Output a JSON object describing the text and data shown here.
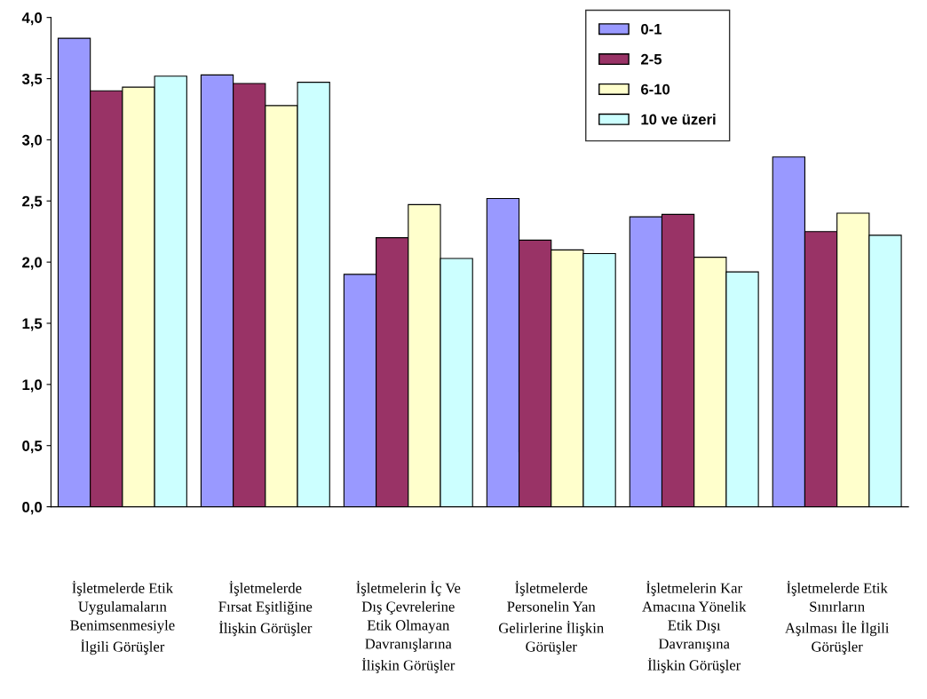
{
  "chart_data": {
    "type": "bar",
    "categories": [
      "İşletmelerde Etik\nUygulamaların\nBenimsenmesiyle\nİlgili Görüşler",
      "İşletmelerde\nFırsat Eşitliğine\nİlişkin Görüşler",
      "İşletmelerin İç Ve\nDış Çevrelerine\nEtik Olmayan\nDavranışlarına\nİlişkin Görüşler",
      "İşletmelerde\nPersonelin Yan\nGelirlerine İlişkin\nGörüşler",
      "İşletmelerin Kar\nAmacına Yönelik\nEtik Dışı\nDavranışına\nİlişkin Görüşler",
      "İşletmelerde Etik\nSınırların\nAşılması İle İlgili\nGörüşler"
    ],
    "series": [
      {
        "name": "0-1",
        "color": "#9999ff",
        "values": [
          3.83,
          3.53,
          1.9,
          2.52,
          2.37,
          2.86
        ]
      },
      {
        "name": "2-5",
        "color": "#993366",
        "values": [
          3.4,
          3.46,
          2.2,
          2.18,
          2.39,
          2.25
        ]
      },
      {
        "name": "6-10",
        "color": "#ffffcc",
        "values": [
          3.43,
          3.28,
          2.47,
          2.1,
          2.04,
          2.4
        ]
      },
      {
        "name": "10 ve üzeri",
        "color": "#ccffff",
        "values": [
          3.52,
          3.47,
          2.03,
          2.07,
          1.92,
          2.22
        ]
      }
    ],
    "ylim": [
      0,
      4
    ],
    "yticks": [
      {
        "value": 0,
        "label": "0,0"
      },
      {
        "value": 0.5,
        "label": "0,5"
      },
      {
        "value": 1,
        "label": "1,0"
      },
      {
        "value": 1.5,
        "label": "1,5"
      },
      {
        "value": 2,
        "label": "2,0"
      },
      {
        "value": 2.5,
        "label": "2,5"
      },
      {
        "value": 3,
        "label": "3,0"
      },
      {
        "value": 3.5,
        "label": "3,5"
      },
      {
        "value": 4,
        "label": "4,0"
      }
    ],
    "grid": false,
    "legend": "top right"
  }
}
